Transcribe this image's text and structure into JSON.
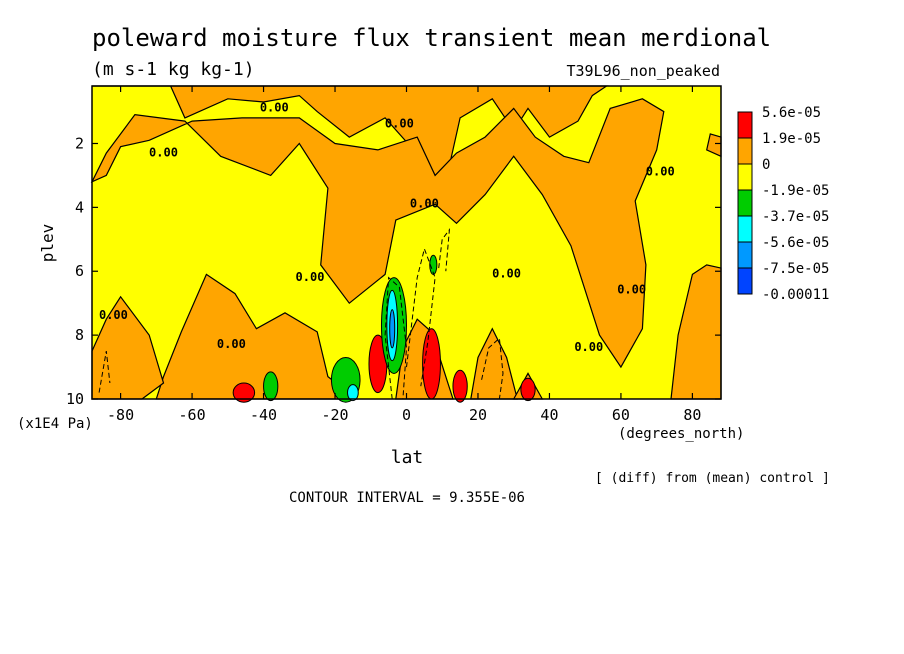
{
  "header": {
    "title": "poleward moisture flux transient mean merdional",
    "units": "(m s-1 kg kg-1)",
    "run": "T39L96_non_peaked"
  },
  "footer": {
    "diff_note": "[ (diff) from (mean) control ]",
    "contour_interval": "CONTOUR INTERVAL = 9.355E-06"
  },
  "colors": {
    "red": "#ff0000",
    "orange": "#ffa500",
    "yellow": "#ffff00",
    "green": "#00cc00",
    "cyan": "#00ffff",
    "light_blue": "#0099ff",
    "blue": "#0044ff",
    "contour": "#000000"
  },
  "chart_data": {
    "type": "heatmap",
    "title": "poleward moisture flux transient mean merdional",
    "xlabel": "lat",
    "ylabel": "plev",
    "x_unit": "(degrees_north)",
    "y_unit": "(x1E4 Pa)",
    "xlim": [
      -88,
      88
    ],
    "ylim": [
      10,
      0.2
    ],
    "x_ticks": [
      "-80",
      "-60",
      "-40",
      "-20",
      "0",
      "20",
      "40",
      "60",
      "80"
    ],
    "y_ticks": [
      "2",
      "4",
      "6",
      "8",
      "10"
    ],
    "legend": {
      "placement": "right",
      "labels": [
        "5.6e-05",
        "1.9e-05",
        "0",
        "-1.9e-05",
        "-3.7e-05",
        "-5.6e-05",
        "-7.5e-05",
        "-0.00011"
      ]
    },
    "contour_labels": [
      {
        "text": "0.00",
        "lat": -68,
        "plev": 2.4
      },
      {
        "text": "0.00",
        "lat": -37,
        "plev": 1.0
      },
      {
        "text": "0.00",
        "lat": -2,
        "plev": 1.5
      },
      {
        "text": "0.00",
        "lat": 5,
        "plev": 4.0
      },
      {
        "text": "0.00",
        "lat": 71,
        "plev": 3.0
      },
      {
        "text": "0.00",
        "lat": -82,
        "plev": 7.5
      },
      {
        "text": "0.00",
        "lat": -49,
        "plev": 8.4
      },
      {
        "text": "0.00",
        "lat": -27,
        "plev": 6.3
      },
      {
        "text": "0.00",
        "lat": 28,
        "plev": 6.2
      },
      {
        "text": "0.00",
        "lat": 63,
        "plev": 6.7
      },
      {
        "text": "0.00",
        "lat": 51,
        "plev": 8.5
      }
    ],
    "regions": [
      {
        "level": "1.9e-05",
        "lat": -45.5,
        "plev": 9.8,
        "rx": 3,
        "ry": 0.3
      },
      {
        "level": "1.9e-05",
        "lat": -8,
        "plev": 8.9,
        "rx": 2.5,
        "ry": 0.9
      },
      {
        "level": "1.9e-05",
        "lat": 7,
        "plev": 8.9,
        "rx": 2.5,
        "ry": 1.1
      },
      {
        "level": "1.9e-05",
        "lat": 15,
        "plev": 9.6,
        "rx": 2,
        "ry": 0.5
      },
      {
        "level": "1.9e-05",
        "lat": 34,
        "plev": 9.7,
        "rx": 2,
        "ry": 0.35
      },
      {
        "level": "-3.7e-05",
        "lat": -38,
        "plev": 9.6,
        "rx": 2,
        "ry": 0.45
      },
      {
        "level": "-3.7e-05",
        "lat": -17,
        "plev": 9.4,
        "rx": 4,
        "ry": 0.7
      },
      {
        "level": "-3.7e-05",
        "lat": -3.5,
        "plev": 7.7,
        "rx": 3.5,
        "ry": 1.5
      },
      {
        "level": "-3.7e-05",
        "lat": 7.5,
        "plev": 5.8,
        "rx": 1,
        "ry": 0.3
      },
      {
        "level": "-5.6e-05",
        "lat": -15,
        "plev": 9.8,
        "rx": 1.5,
        "ry": 0.25
      },
      {
        "level": "-5.6e-05",
        "lat": -4,
        "plev": 7.7,
        "rx": 1.5,
        "ry": 1.1
      },
      {
        "level": "-7.5e-05",
        "lat": -4,
        "plev": 7.8,
        "rx": 0.7,
        "ry": 0.6
      }
    ]
  }
}
